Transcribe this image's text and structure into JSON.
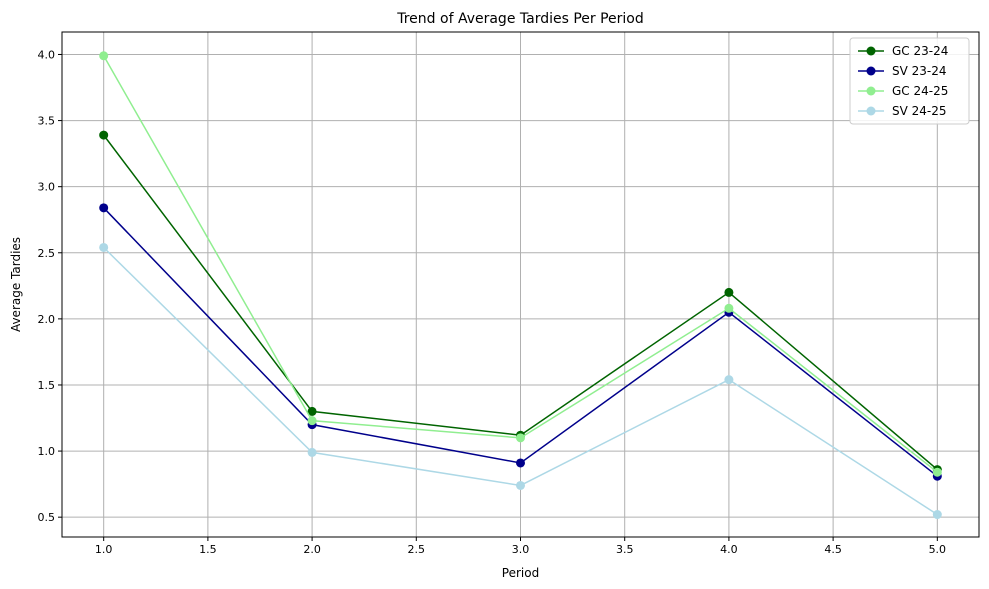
{
  "chart_data": {
    "type": "line",
    "title": "Trend of Average Tardies Per Period",
    "xlabel": "Period",
    "ylabel": "Average Tardies",
    "x": [
      1.0,
      2.0,
      3.0,
      4.0,
      5.0
    ],
    "xlim": [
      0.8,
      5.2
    ],
    "ylim": [
      0.35,
      4.17
    ],
    "xticks": [
      1.0,
      1.5,
      2.0,
      2.5,
      3.0,
      3.5,
      4.0,
      4.5,
      5.0
    ],
    "xtick_labels": [
      "1.0",
      "1.5",
      "2.0",
      "2.5",
      "3.0",
      "3.5",
      "4.0",
      "4.5",
      "5.0"
    ],
    "yticks": [
      0.5,
      1.0,
      1.5,
      2.0,
      2.5,
      3.0,
      3.5,
      4.0
    ],
    "ytick_labels": [
      "0.5",
      "1.0",
      "1.5",
      "2.0",
      "2.5",
      "3.0",
      "3.5",
      "4.0"
    ],
    "grid": true,
    "legend_position": "top-right",
    "series": [
      {
        "name": "GC 23-24",
        "color": "#006400",
        "values": [
          3.39,
          1.3,
          1.12,
          2.2,
          0.86
        ]
      },
      {
        "name": "SV 23-24",
        "color": "#00008b",
        "values": [
          2.84,
          1.2,
          0.91,
          2.05,
          0.81
        ]
      },
      {
        "name": "GC 24-25",
        "color": "#90ee90",
        "values": [
          3.99,
          1.23,
          1.1,
          2.08,
          0.84
        ]
      },
      {
        "name": "SV 24-25",
        "color": "#add8e6",
        "values": [
          2.54,
          0.99,
          0.74,
          1.54,
          0.52
        ]
      }
    ]
  }
}
